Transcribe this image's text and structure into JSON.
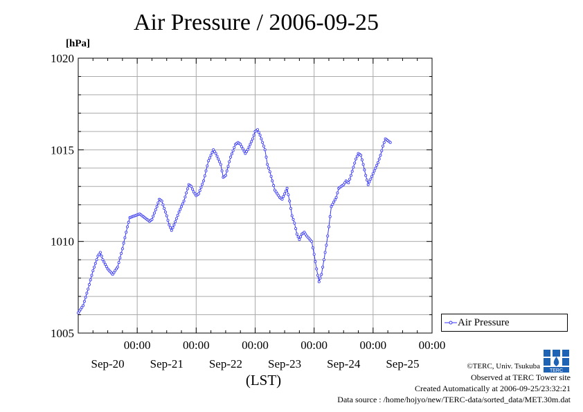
{
  "chart_data": {
    "type": "line",
    "title": "Air Pressure / 2006-09-25",
    "ylabel": "[hPa]",
    "xlabel": "(LST)",
    "ylim": [
      1005,
      1020
    ],
    "yticks": [
      "1005",
      "1010",
      "1015",
      "1020"
    ],
    "xticks": [
      {
        "time": "00:00",
        "date": "Sep-20"
      },
      {
        "time": "00:00",
        "date": "Sep-21"
      },
      {
        "time": "00:00",
        "date": "Sep-22"
      },
      {
        "time": "00:00",
        "date": "Sep-23"
      },
      {
        "time": "00:00",
        "date": "Sep-24"
      },
      {
        "time": "00:00",
        "date": "Sep-25"
      }
    ],
    "x_unit": "hours since 2006-09-19 00:00 LST",
    "x_range": [
      0,
      144
    ],
    "grid": true,
    "legend_position": "right-bottom",
    "series": [
      {
        "name": "Air Pressure",
        "color": "#3333ff",
        "points": [
          [
            0,
            1006.1
          ],
          [
            2,
            1006.5
          ],
          [
            4,
            1007.4
          ],
          [
            6,
            1008.4
          ],
          [
            8,
            1009.2
          ],
          [
            9,
            1009.4
          ],
          [
            10,
            1009.0
          ],
          [
            12,
            1008.5
          ],
          [
            14,
            1008.2
          ],
          [
            16,
            1008.6
          ],
          [
            18,
            1009.6
          ],
          [
            20,
            1010.8
          ],
          [
            21,
            1011.3
          ],
          [
            23,
            1011.4
          ],
          [
            25,
            1011.5
          ],
          [
            27,
            1011.3
          ],
          [
            29,
            1011.1
          ],
          [
            30,
            1011.2
          ],
          [
            32,
            1011.9
          ],
          [
            33,
            1012.3
          ],
          [
            34,
            1012.2
          ],
          [
            36,
            1011.4
          ],
          [
            37,
            1010.9
          ],
          [
            38,
            1010.6
          ],
          [
            39,
            1010.9
          ],
          [
            41,
            1011.6
          ],
          [
            43,
            1012.2
          ],
          [
            45,
            1013.1
          ],
          [
            46,
            1013.0
          ],
          [
            47,
            1012.7
          ],
          [
            48,
            1012.5
          ],
          [
            49,
            1012.6
          ],
          [
            51,
            1013.3
          ],
          [
            53,
            1014.4
          ],
          [
            55,
            1015.0
          ],
          [
            56,
            1014.8
          ],
          [
            58,
            1014.2
          ],
          [
            59,
            1013.5
          ],
          [
            60,
            1013.6
          ],
          [
            62,
            1014.6
          ],
          [
            64,
            1015.3
          ],
          [
            65,
            1015.4
          ],
          [
            66,
            1015.3
          ],
          [
            68,
            1014.8
          ],
          [
            69,
            1015.0
          ],
          [
            71,
            1015.6
          ],
          [
            72,
            1016.0
          ],
          [
            73,
            1016.1
          ],
          [
            74,
            1015.8
          ],
          [
            76,
            1015.0
          ],
          [
            77,
            1014.2
          ],
          [
            78,
            1013.8
          ],
          [
            80,
            1012.8
          ],
          [
            82,
            1012.4
          ],
          [
            83,
            1012.3
          ],
          [
            84,
            1012.6
          ],
          [
            85,
            1012.9
          ],
          [
            86,
            1012.2
          ],
          [
            87,
            1011.4
          ],
          [
            88,
            1011.0
          ],
          [
            89,
            1010.4
          ],
          [
            90,
            1010.1
          ],
          [
            91,
            1010.4
          ],
          [
            92,
            1010.5
          ],
          [
            93,
            1010.3
          ],
          [
            95,
            1010.0
          ],
          [
            96,
            1009.3
          ],
          [
            97,
            1008.5
          ],
          [
            98,
            1007.8
          ],
          [
            99,
            1008.2
          ],
          [
            100,
            1009.0
          ],
          [
            101,
            1009.8
          ],
          [
            102,
            1010.8
          ],
          [
            103,
            1011.9
          ],
          [
            105,
            1012.4
          ],
          [
            106,
            1012.9
          ],
          [
            108,
            1013.1
          ],
          [
            109,
            1013.3
          ],
          [
            110,
            1013.2
          ],
          [
            111,
            1013.6
          ],
          [
            113,
            1014.5
          ],
          [
            114,
            1014.8
          ],
          [
            115,
            1014.7
          ],
          [
            116,
            1014.2
          ],
          [
            117,
            1013.6
          ],
          [
            118,
            1013.1
          ],
          [
            119,
            1013.4
          ],
          [
            120,
            1013.7
          ],
          [
            121,
            1014.0
          ],
          [
            122,
            1014.3
          ],
          [
            123,
            1014.7
          ],
          [
            124,
            1015.2
          ],
          [
            125,
            1015.6
          ],
          [
            126,
            1015.5
          ],
          [
            127,
            1015.4
          ]
        ]
      }
    ]
  },
  "footer": {
    "copyright": "©TERC, Univ. Tsukuba",
    "observed": "Observed at TERC Tower site",
    "created": "Created Automatically at 2006-09-25/23:32:21",
    "source": "Data source : /home/hojyo/new/TERC-data/sorted_data/MET.30m.dat",
    "logo_text": "TERC"
  }
}
